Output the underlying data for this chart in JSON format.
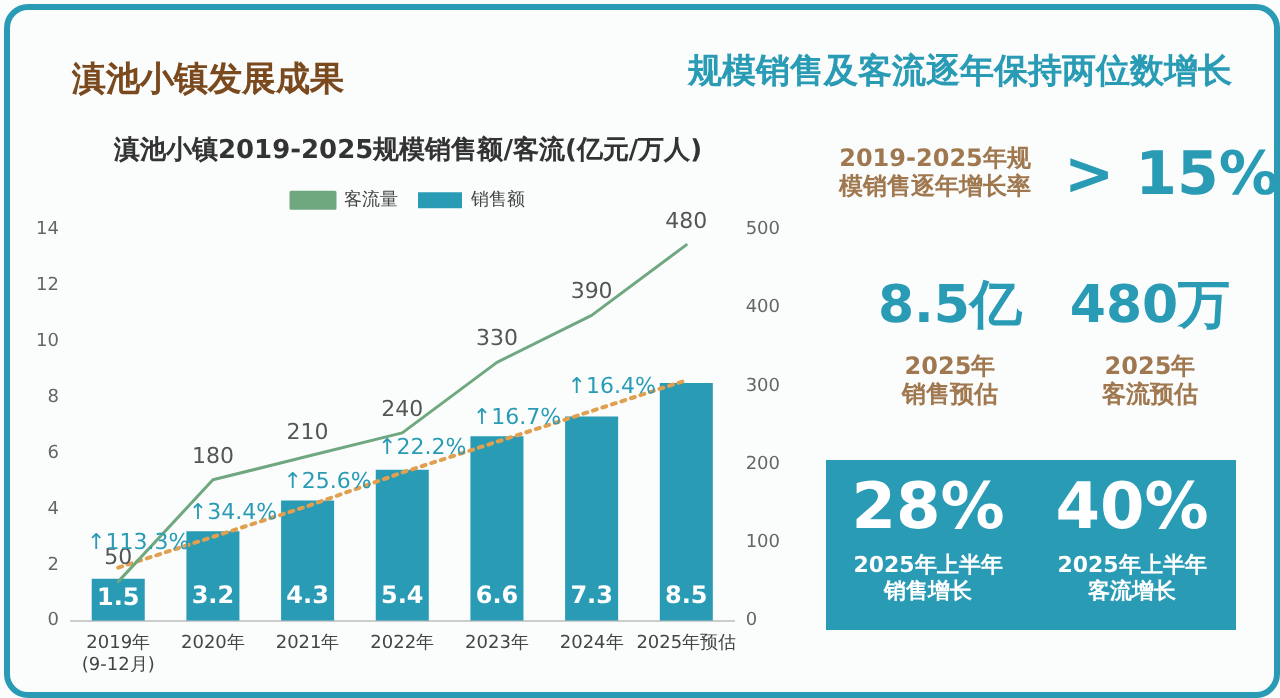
{
  "chart_data": [
    {
      "type": "bar",
      "title": "滇池小镇2019-2025规模销售额/客流(亿元/万人)",
      "categories": [
        "2019年\n(9-12月)",
        "2020年",
        "2021年",
        "2022年",
        "2023年",
        "2024年",
        "2025年预估"
      ],
      "series": [
        {
          "name": "销售额",
          "type": "bar",
          "color": "#2a9bb5",
          "values": [
            1.5,
            3.2,
            4.3,
            5.4,
            6.6,
            7.3,
            8.5
          ],
          "value_labels": [
            "1.5",
            "3.2",
            "4.3",
            "5.4",
            "6.6",
            "7.3",
            "8.5"
          ]
        },
        {
          "name": "客流量",
          "type": "line",
          "axis": "y2",
          "color": "#6fa77f",
          "marker": "none",
          "values": [
            50,
            180,
            210,
            240,
            330,
            390,
            480
          ],
          "value_labels": [
            "50",
            "180",
            "210",
            "240",
            "330",
            "390",
            "480"
          ]
        },
        {
          "type": "line",
          "color": "#e0a050",
          "line_style": "dotted",
          "values": [
            1.9,
            3.0,
            4.1,
            5.3,
            6.4,
            7.5,
            8.6
          ]
        }
      ],
      "ylim": [
        0,
        14
      ],
      "yticks": [
        0,
        2,
        4,
        6,
        8,
        10,
        12,
        14
      ],
      "y2lim": [
        0,
        500
      ],
      "y2ticks": [
        0,
        100,
        200,
        300,
        400,
        500
      ],
      "grid": false,
      "legend": "top",
      "annotations": [
        "滇池小镇发展成果",
        "↑113.3%",
        "↑34.4%",
        "↑25.6%",
        "↑22.2%",
        "↑16.7%",
        "↑16.4%"
      ]
    },
    {
      "type": "other",
      "title": "规模销售及客流逐年保持两位数增长",
      "annotations": [
        "2019-2025年规模销售逐年增长率",
        "> 15%",
        "8.5亿",
        "2025年销售预估",
        "480万",
        "2025年客流预估",
        "28%",
        "2025年上半年销售增长",
        "40%",
        "2025年上半年客流增长"
      ]
    }
  ]
}
